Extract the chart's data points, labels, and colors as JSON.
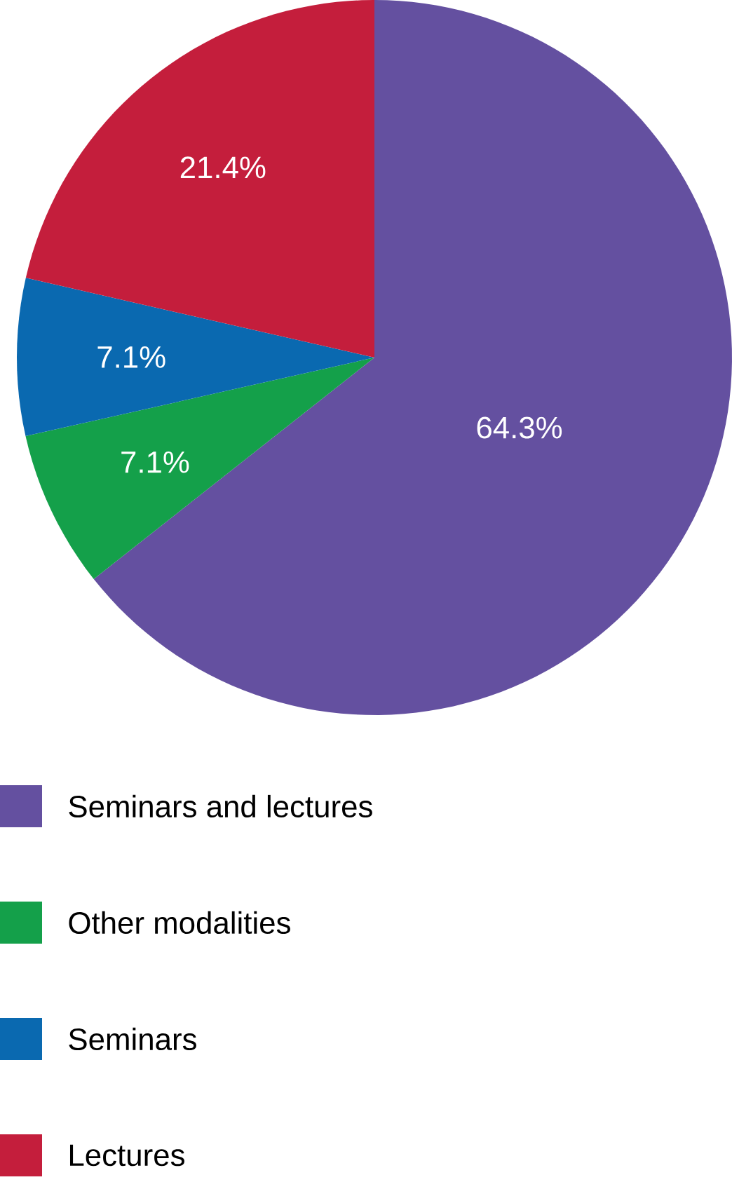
{
  "chart_data": {
    "type": "pie",
    "categories": [
      "Seminars and lectures",
      "Other modalities",
      "Seminars",
      "Lectures"
    ],
    "values": [
      64.3,
      7.1,
      7.1,
      21.4
    ],
    "colors": [
      "#6450a0",
      "#14a04a",
      "#0a69b0",
      "#c41e3c"
    ],
    "value_labels": [
      "64.3%",
      "7.1%",
      "7.1%",
      "21.4%"
    ],
    "legend": "bottom"
  }
}
